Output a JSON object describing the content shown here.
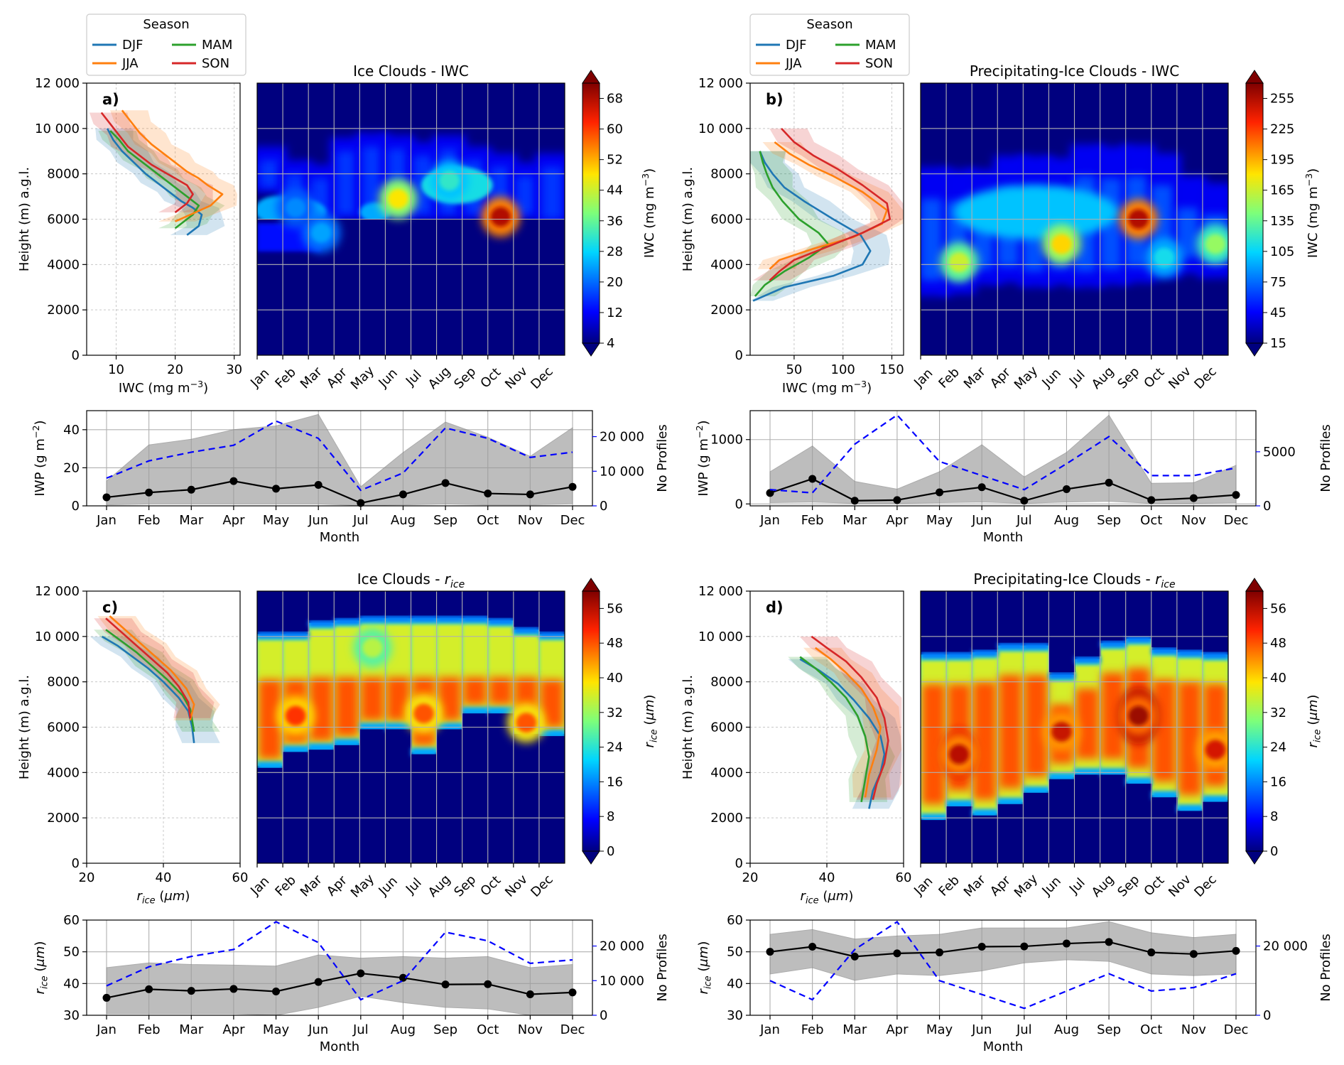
{
  "months": [
    "Jan",
    "Feb",
    "Mar",
    "Apr",
    "May",
    "Jun",
    "Jul",
    "Aug",
    "Sep",
    "Oct",
    "Nov",
    "Dec"
  ],
  "legend": {
    "title": "Season",
    "entries": [
      {
        "name": "DJF",
        "color": "#1f77b4"
      },
      {
        "name": "MAM",
        "color": "#2ca02c"
      },
      {
        "name": "JJA",
        "color": "#ff7f0e"
      },
      {
        "name": "SON",
        "color": "#d62728"
      }
    ]
  },
  "common": {
    "height_label": "Height (m) a.g.l.",
    "month_label": "Month",
    "profiles_label": "No Profiles",
    "height_ticks": [
      0,
      2000,
      4000,
      6000,
      8000,
      10000,
      12000
    ]
  },
  "chart_data": [
    {
      "panel": "a)",
      "type": "line",
      "xlabel": "IWC (mg m⁻³)",
      "ylabel": "Height (m) a.g.l.",
      "xlim": [
        5,
        31
      ],
      "ylim": [
        0,
        12000
      ],
      "xticks": [
        10,
        20,
        30
      ],
      "series": [
        {
          "name": "DJF",
          "x": [
            8.5,
            9.5,
            11,
            13,
            15,
            17,
            19,
            21,
            23,
            24.5,
            24,
            22
          ],
          "y": [
            10000,
            9500,
            9000,
            8500,
            8000,
            7600,
            7200,
            6800,
            6500,
            6200,
            5700,
            5300
          ]
        },
        {
          "name": "MAM",
          "x": [
            9,
            10.5,
            12,
            14,
            16,
            18,
            20,
            22,
            24,
            23,
            21,
            20
          ],
          "y": [
            9900,
            9500,
            9000,
            8600,
            8200,
            7800,
            7400,
            7000,
            6600,
            6200,
            5800,
            5600
          ]
        },
        {
          "name": "JJA",
          "x": [
            11,
            12.5,
            14,
            16,
            18,
            20,
            22,
            24,
            25.5,
            28,
            26,
            20
          ],
          "y": [
            10800,
            10300,
            9800,
            9300,
            8900,
            8500,
            8100,
            7800,
            7500,
            7100,
            6600,
            5900
          ]
        },
        {
          "name": "SON",
          "x": [
            7.5,
            9,
            10.5,
            12,
            14,
            16,
            18,
            20,
            22,
            23,
            22,
            20
          ],
          "y": [
            10700,
            10200,
            9700,
            9200,
            8800,
            8400,
            8100,
            7800,
            7500,
            7100,
            6700,
            6300
          ]
        }
      ]
    },
    {
      "panel": "a",
      "type": "heatmap",
      "title": "Ice Clouds - IWC",
      "x": "months",
      "ylim": [
        0,
        12000
      ],
      "colorbar": {
        "label": "IWC (mg m⁻³)",
        "ticks": [
          4,
          12,
          20,
          28,
          36,
          44,
          52,
          60,
          68
        ],
        "range": [
          4,
          72
        ]
      },
      "features": [
        {
          "month": "Jun",
          "height": 6900,
          "value": 48
        },
        {
          "month": "Oct",
          "height": 6100,
          "value": 68
        },
        {
          "month": "Aug",
          "height": 7700,
          "value": 32
        },
        {
          "month": "Mar",
          "height": 5400,
          "value": 24
        },
        {
          "month": "Feb",
          "height": 6500,
          "value": 22
        }
      ]
    },
    {
      "panel": "b)",
      "type": "line",
      "xlabel": "IWC (mg m⁻³)",
      "ylabel": "Height (m) a.g.l.",
      "xlim": [
        5,
        162
      ],
      "ylim": [
        0,
        12000
      ],
      "xticks": [
        50,
        100,
        150
      ],
      "series": [
        {
          "name": "DJF",
          "x": [
            15,
            20,
            28,
            40,
            60,
            90,
            118,
            128,
            120,
            90,
            40,
            8
          ],
          "y": [
            9000,
            8500,
            8000,
            7400,
            6800,
            6000,
            5300,
            4600,
            4000,
            3500,
            3000,
            2400
          ]
        },
        {
          "name": "MAM",
          "x": [
            15,
            18,
            22,
            28,
            38,
            55,
            75,
            85,
            65,
            40,
            20,
            10
          ],
          "y": [
            9000,
            8500,
            8000,
            7400,
            6800,
            6000,
            5400,
            4900,
            4300,
            3700,
            3100,
            2600
          ]
        },
        {
          "name": "JJA",
          "x": [
            30,
            45,
            65,
            90,
            120,
            145,
            140,
            110,
            70,
            35,
            25
          ],
          "y": [
            9400,
            8900,
            8400,
            7900,
            7200,
            6400,
            5800,
            5200,
            4700,
            4200,
            3800
          ]
        },
        {
          "name": "SON",
          "x": [
            37,
            50,
            70,
            95,
            120,
            145,
            148,
            120,
            85,
            50,
            35,
            25
          ],
          "y": [
            10000,
            9400,
            8800,
            8200,
            7500,
            6700,
            6000,
            5400,
            4800,
            4200,
            3700,
            3300
          ]
        }
      ]
    },
    {
      "panel": "b",
      "type": "heatmap",
      "title": "Precipitating-Ice Clouds - IWC",
      "x": "months",
      "ylim": [
        0,
        12000
      ],
      "colorbar": {
        "label": "IWC (mg m⁻³)",
        "ticks": [
          15,
          45,
          75,
          105,
          135,
          165,
          195,
          225,
          255
        ],
        "range": [
          15,
          270
        ]
      },
      "features": [
        {
          "month": "Sep",
          "height": 6000,
          "value": 255
        },
        {
          "month": "Feb",
          "height": 4100,
          "value": 165
        },
        {
          "month": "Jun",
          "height": 4900,
          "value": 185
        },
        {
          "month": "Dec",
          "height": 4900,
          "value": 150
        },
        {
          "month": "Oct",
          "height": 4300,
          "value": 110
        }
      ]
    },
    {
      "panel": "a",
      "type": "line",
      "xlabel": "Month",
      "ylabel": "IWP (g m⁻²)",
      "ylim": [
        0,
        50
      ],
      "yticks": [
        0,
        20,
        40
      ],
      "y2label": "No Profiles",
      "y2lim": [
        0,
        27500
      ],
      "y2ticks": [
        0,
        10000,
        20000
      ],
      "categories": [
        "Jan",
        "Feb",
        "Mar",
        "Apr",
        "May",
        "Jun",
        "Jul",
        "Aug",
        "Sep",
        "Oct",
        "Nov",
        "Dec"
      ],
      "series": [
        {
          "name": "IWP",
          "values": [
            4.5,
            7,
            8.5,
            13,
            9,
            11,
            1.5,
            6,
            12,
            6.5,
            6,
            10
          ]
        },
        {
          "name": "IWP upper",
          "values": [
            13,
            32,
            35,
            40,
            42,
            48,
            10,
            28,
            44,
            36,
            26,
            41
          ]
        },
        {
          "name": "IWP lower",
          "values": [
            0.5,
            1,
            1,
            1,
            1,
            1,
            0.2,
            0.5,
            1,
            0.5,
            0.5,
            1
          ]
        },
        {
          "name": "No Profiles",
          "values": [
            8000,
            13000,
            15500,
            17500,
            24500,
            19500,
            4500,
            9500,
            22500,
            19500,
            14000,
            15500
          ]
        }
      ]
    },
    {
      "panel": "b",
      "type": "line",
      "xlabel": "Month",
      "ylabel": "IWP (g m⁻²)",
      "ylim": [
        -30,
        1450
      ],
      "yticks": [
        0,
        1000
      ],
      "y2label": "No Profiles",
      "y2lim": [
        0,
        8800
      ],
      "y2ticks": [
        0,
        5000
      ],
      "categories": [
        "Jan",
        "Feb",
        "Mar",
        "Apr",
        "May",
        "Jun",
        "Jul",
        "Aug",
        "Sep",
        "Oct",
        "Nov",
        "Dec"
      ],
      "series": [
        {
          "name": "IWP",
          "values": [
            170,
            390,
            50,
            60,
            180,
            260,
            50,
            230,
            330,
            60,
            90,
            140
          ]
        },
        {
          "name": "IWP upper",
          "values": [
            500,
            900,
            350,
            230,
            500,
            920,
            420,
            800,
            1380,
            320,
            330,
            600
          ]
        },
        {
          "name": "IWP lower",
          "values": [
            20,
            30,
            10,
            10,
            20,
            30,
            10,
            30,
            40,
            10,
            10,
            20
          ]
        },
        {
          "name": "No Profiles",
          "values": [
            1500,
            1200,
            5700,
            8400,
            4100,
            2800,
            1500,
            3900,
            6400,
            2800,
            2800,
            3500
          ]
        }
      ]
    },
    {
      "panel": "c)",
      "type": "line",
      "xlabel": "r_ice (μm)",
      "ylabel": "Height (m) a.g.l.",
      "xlim": [
        20,
        60
      ],
      "ylim": [
        0,
        12000
      ],
      "xticks": [
        20,
        40,
        60
      ],
      "series": [
        {
          "name": "DJF",
          "x": [
            24,
            28,
            32,
            36,
            40,
            44,
            46.5,
            47.5,
            48
          ],
          "y": [
            10000,
            9600,
            9100,
            8600,
            8000,
            7300,
            6700,
            6000,
            5300
          ]
        },
        {
          "name": "MAM",
          "x": [
            25,
            29,
            33,
            37,
            41,
            45,
            47,
            47.5,
            48
          ],
          "y": [
            10300,
            9800,
            9300,
            8700,
            8100,
            7400,
            6800,
            6300,
            5800
          ]
        },
        {
          "name": "JJA",
          "x": [
            26,
            30,
            34,
            38,
            42,
            46,
            48,
            47
          ],
          "y": [
            10900,
            10300,
            9700,
            9100,
            8500,
            7700,
            7000,
            6300
          ]
        },
        {
          "name": "SON",
          "x": [
            25,
            29,
            33,
            37,
            41,
            44,
            46.5,
            47
          ],
          "y": [
            10800,
            10200,
            9600,
            9000,
            8400,
            7800,
            7100,
            6400
          ]
        }
      ]
    },
    {
      "panel": "c",
      "type": "heatmap",
      "title": "Ice Clouds - r_ice",
      "x": "months",
      "ylim": [
        0,
        12000
      ],
      "colorbar": {
        "label": "r_ice (μm)",
        "ticks": [
          0,
          8,
          16,
          24,
          32,
          40,
          48,
          56
        ],
        "range": [
          0,
          60
        ]
      },
      "features": [
        {
          "month": "Feb",
          "height": 6500,
          "value": 50
        },
        {
          "month": "Jul",
          "height": 6600,
          "value": 48
        },
        {
          "month": "Nov",
          "height": 6200,
          "value": 48
        },
        {
          "month": "May",
          "height": 9500,
          "value": 34
        }
      ]
    },
    {
      "panel": "d)",
      "type": "line",
      "xlabel": "r_ice (μm)",
      "ylabel": "Height (m) a.g.l.",
      "xlim": [
        20,
        60
      ],
      "ylim": [
        0,
        12000
      ],
      "xticks": [
        20,
        40,
        60
      ],
      "series": [
        {
          "name": "DJF",
          "x": [
            33,
            38,
            43,
            47,
            51,
            54,
            55,
            54,
            52,
            51
          ],
          "y": [
            9000,
            8500,
            7900,
            7200,
            6400,
            5600,
            4800,
            4000,
            3200,
            2400
          ]
        },
        {
          "name": "MAM",
          "x": [
            33,
            37,
            41,
            45,
            48,
            50,
            51,
            50,
            49
          ],
          "y": [
            9100,
            8600,
            8000,
            7300,
            6500,
            5600,
            4700,
            3700,
            2700
          ]
        },
        {
          "name": "JJA",
          "x": [
            37,
            41,
            45,
            49,
            52,
            54,
            53,
            51,
            50
          ],
          "y": [
            9500,
            9000,
            8400,
            7700,
            6900,
            6000,
            5000,
            3900,
            2900
          ]
        },
        {
          "name": "SON",
          "x": [
            36,
            40,
            45,
            49,
            53,
            55,
            56,
            55,
            53,
            52
          ],
          "y": [
            10000,
            9500,
            8900,
            8200,
            7300,
            6400,
            5400,
            4400,
            3500,
            2800
          ]
        }
      ]
    },
    {
      "panel": "d",
      "type": "heatmap",
      "title": "Precipitating-Ice Clouds - r_ice",
      "x": "months",
      "ylim": [
        0,
        12000
      ],
      "colorbar": {
        "label": "r_ice (μm)",
        "ticks": [
          0,
          8,
          16,
          24,
          32,
          40,
          48,
          56
        ],
        "range": [
          0,
          60
        ]
      },
      "features": [
        {
          "month": "Sep",
          "height": 6500,
          "value": 58
        },
        {
          "month": "Feb",
          "height": 4800,
          "value": 56
        },
        {
          "month": "Jun",
          "height": 5800,
          "value": 55
        },
        {
          "month": "Dec",
          "height": 5000,
          "value": 54
        }
      ]
    },
    {
      "panel": "c",
      "type": "line",
      "xlabel": "Month",
      "ylabel": "r_ice (μm)",
      "ylim": [
        30,
        60
      ],
      "yticks": [
        30,
        40,
        50,
        60
      ],
      "y2label": "No Profiles",
      "y2lim": [
        0,
        27500
      ],
      "y2ticks": [
        0,
        10000,
        20000
      ],
      "categories": [
        "Jan",
        "Feb",
        "Mar",
        "Apr",
        "May",
        "Jun",
        "Jul",
        "Aug",
        "Sep",
        "Oct",
        "Nov",
        "Dec"
      ],
      "series": [
        {
          "name": "r_ice",
          "values": [
            35.5,
            38.2,
            37.7,
            38.3,
            37.5,
            40.5,
            43.2,
            41.8,
            39.7,
            39.8,
            36.6,
            37.2
          ]
        },
        {
          "name": "r_ice upper",
          "values": [
            45,
            46.5,
            46,
            45.8,
            45.5,
            49,
            48,
            48.5,
            48,
            48.5,
            45,
            46
          ]
        },
        {
          "name": "r_ice lower",
          "values": [
            30.5,
            30.5,
            30.5,
            30.5,
            30,
            32.5,
            36,
            34,
            32.5,
            32,
            30,
            30
          ]
        },
        {
          "name": "No Profiles",
          "values": [
            8500,
            14000,
            17000,
            19000,
            27000,
            21000,
            4500,
            10000,
            24000,
            21500,
            15000,
            16000
          ]
        }
      ]
    },
    {
      "panel": "d",
      "type": "line",
      "xlabel": "Month",
      "ylabel": "r_ice (μm)",
      "ylim": [
        30,
        60
      ],
      "yticks": [
        30,
        40,
        50,
        60
      ],
      "y2label": "No Profiles",
      "y2lim": [
        0,
        27500
      ],
      "y2ticks": [
        0,
        20000
      ],
      "categories": [
        "Jan",
        "Feb",
        "Mar",
        "Apr",
        "May",
        "Jun",
        "Jul",
        "Aug",
        "Sep",
        "Oct",
        "Nov",
        "Dec"
      ],
      "series": [
        {
          "name": "r_ice",
          "values": [
            50,
            51.6,
            48.5,
            49.5,
            49.8,
            51.6,
            51.7,
            52.6,
            53.1,
            49.8,
            49.3,
            50.3
          ]
        },
        {
          "name": "r_ice upper",
          "values": [
            55.5,
            57,
            54,
            55,
            55.5,
            57.5,
            57.5,
            57.5,
            59.5,
            56,
            54.5,
            55.5
          ]
        },
        {
          "name": "r_ice lower",
          "values": [
            43,
            45,
            41,
            43,
            42.5,
            44,
            46.5,
            47.5,
            47,
            43,
            42.5,
            43
          ]
        },
        {
          "name": "No Profiles",
          "values": [
            10000,
            4500,
            19000,
            27000,
            10000,
            6000,
            2000,
            7000,
            12000,
            7000,
            8000,
            12000
          ]
        }
      ]
    }
  ]
}
